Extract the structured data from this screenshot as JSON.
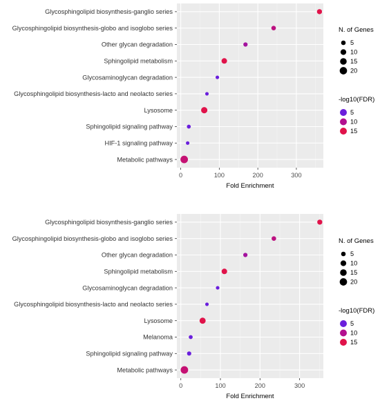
{
  "legends": {
    "size": {
      "title": "N. of Genes",
      "items": [
        5,
        10,
        15,
        20
      ]
    },
    "color": {
      "title": "-log10(FDR)",
      "items": [
        {
          "value": 5,
          "color": "#6a1fdc"
        },
        {
          "value": 10,
          "color": "#b3108f"
        },
        {
          "value": 15,
          "color": "#e0134a"
        }
      ]
    }
  },
  "chart_data": [
    {
      "type": "scatter",
      "xlabel": "Fold Enrichment",
      "xlim": [
        -10,
        370
      ],
      "xticks": [
        0,
        100,
        200,
        300
      ],
      "grid": true,
      "legend_position": "right",
      "categories": [
        "Glycosphingolipid biosynthesis-ganglio series",
        "Glycosphingolipid biosynthesis-globo and isoglobo series",
        "Other glycan degradation",
        "Sphingolipid metabolism",
        "Glycosaminoglycan degradation",
        "Glycosphingolipid biosynthesis-lacto and neolacto series",
        "Lysosome",
        "Sphingolipid signaling pathway",
        "HIF-1 signaling pathway",
        "Metabolic pathways"
      ],
      "points": [
        {
          "category": "Glycosphingolipid biosynthesis-ganglio series",
          "x": 360,
          "genes": 7,
          "neg_log10_fdr": 16
        },
        {
          "category": "Glycosphingolipid biosynthesis-globo and isoglobo series",
          "x": 241,
          "genes": 5,
          "neg_log10_fdr": 11
        },
        {
          "category": "Other glycan degradation",
          "x": 168,
          "genes": 4,
          "neg_log10_fdr": 9
        },
        {
          "category": "Sphingolipid metabolism",
          "x": 113,
          "genes": 9,
          "neg_log10_fdr": 15
        },
        {
          "category": "Glycosaminoglycan degradation",
          "x": 95,
          "genes": 2,
          "neg_log10_fdr": 5
        },
        {
          "category": "Glycosphingolipid biosynthesis-lacto and neolacto series",
          "x": 68,
          "genes": 2,
          "neg_log10_fdr": 4
        },
        {
          "category": "Lysosome",
          "x": 61,
          "genes": 13,
          "neg_log10_fdr": 16
        },
        {
          "category": "Sphingolipid signaling pathway",
          "x": 21,
          "genes": 3,
          "neg_log10_fdr": 3
        },
        {
          "category": "HIF-1 signaling pathway",
          "x": 18,
          "genes": 2,
          "neg_log10_fdr": 2
        },
        {
          "category": "Metabolic pathways",
          "x": 9,
          "genes": 21,
          "neg_log10_fdr": 12
        }
      ]
    },
    {
      "type": "scatter",
      "xlabel": "Fold Enrichment",
      "xlim": [
        -10,
        360
      ],
      "xticks": [
        0,
        100,
        200,
        300
      ],
      "grid": true,
      "legend_position": "right",
      "categories": [
        "Glycosphingolipid biosynthesis-ganglio series",
        "Glycosphingolipid biosynthesis-globo and isoglobo series",
        "Other glycan degradation",
        "Sphingolipid metabolism",
        "Glycosaminoglycan degradation",
        "Glycosphingolipid biosynthesis-lacto and neolacto series",
        "Lysosome",
        "Melanoma",
        "Sphingolipid signaling pathway",
        "Metabolic pathways"
      ],
      "points": [
        {
          "category": "Glycosphingolipid biosynthesis-ganglio series",
          "x": 351,
          "genes": 7,
          "neg_log10_fdr": 16
        },
        {
          "category": "Glycosphingolipid biosynthesis-globo and isoglobo series",
          "x": 235,
          "genes": 5,
          "neg_log10_fdr": 11
        },
        {
          "category": "Other glycan degradation",
          "x": 163,
          "genes": 4,
          "neg_log10_fdr": 9
        },
        {
          "category": "Sphingolipid metabolism",
          "x": 110,
          "genes": 9,
          "neg_log10_fdr": 15
        },
        {
          "category": "Glycosaminoglycan degradation",
          "x": 93,
          "genes": 2,
          "neg_log10_fdr": 5
        },
        {
          "category": "Glycosphingolipid biosynthesis-lacto and neolacto series",
          "x": 66,
          "genes": 2,
          "neg_log10_fdr": 4
        },
        {
          "category": "Lysosome",
          "x": 55,
          "genes": 12,
          "neg_log10_fdr": 16
        },
        {
          "category": "Melanoma",
          "x": 25,
          "genes": 3,
          "neg_log10_fdr": 3
        },
        {
          "category": "Sphingolipid signaling pathway",
          "x": 21,
          "genes": 4,
          "neg_log10_fdr": 3
        },
        {
          "category": "Metabolic pathways",
          "x": 9,
          "genes": 21,
          "neg_log10_fdr": 12
        }
      ]
    }
  ]
}
